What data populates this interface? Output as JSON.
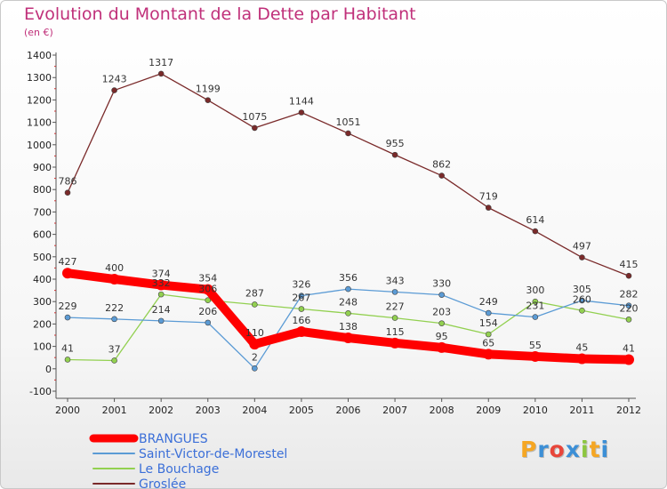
{
  "header": {
    "title": "Evolution du Montant de la Dette par Habitant",
    "subtitle": "(en €)"
  },
  "logo": {
    "letters": [
      "P",
      "r",
      "o",
      "x",
      "i",
      "t",
      "i"
    ],
    "colors": [
      "#f5a623",
      "#3c8fd6",
      "#e8463a",
      "#3c8fd6",
      "#8cc63f",
      "#f5a623",
      "#3c8fd6"
    ]
  },
  "chart_data": {
    "type": "line",
    "title": "Evolution du Montant de la Dette par Habitant",
    "subtitle": "(en €)",
    "xlabel": "",
    "ylabel": "",
    "x": [
      "2000",
      "2001",
      "2002",
      "2003",
      "2004",
      "2005",
      "2006",
      "2007",
      "2008",
      "2009",
      "2010",
      "2011",
      "2012"
    ],
    "ylim": [
      -100,
      1400
    ],
    "yticks": [
      -100,
      0,
      100,
      200,
      300,
      400,
      500,
      600,
      700,
      800,
      900,
      1000,
      1100,
      1200,
      1300,
      1400
    ],
    "grid": false,
    "legend_position": "bottom-left",
    "series": [
      {
        "name": "BRANGUES",
        "color": "#ff0000",
        "values": [
          427,
          400,
          374,
          354,
          110,
          166,
          138,
          115,
          95,
          65,
          55,
          45,
          41
        ]
      },
      {
        "name": "Saint-Victor-de-Morestel",
        "color": "#5b9bd5",
        "values": [
          229,
          222,
          214,
          206,
          2,
          326,
          356,
          343,
          330,
          249,
          231,
          305,
          282
        ]
      },
      {
        "name": "Le Bouchage",
        "color": "#92d050",
        "values": [
          41,
          37,
          332,
          306,
          287,
          267,
          248,
          227,
          203,
          154,
          300,
          260,
          220
        ]
      },
      {
        "name": "Groslée",
        "color": "#7a2a2a",
        "values": [
          786,
          1243,
          1317,
          1199,
          1075,
          1144,
          1051,
          955,
          862,
          719,
          614,
          497,
          415
        ]
      }
    ]
  }
}
